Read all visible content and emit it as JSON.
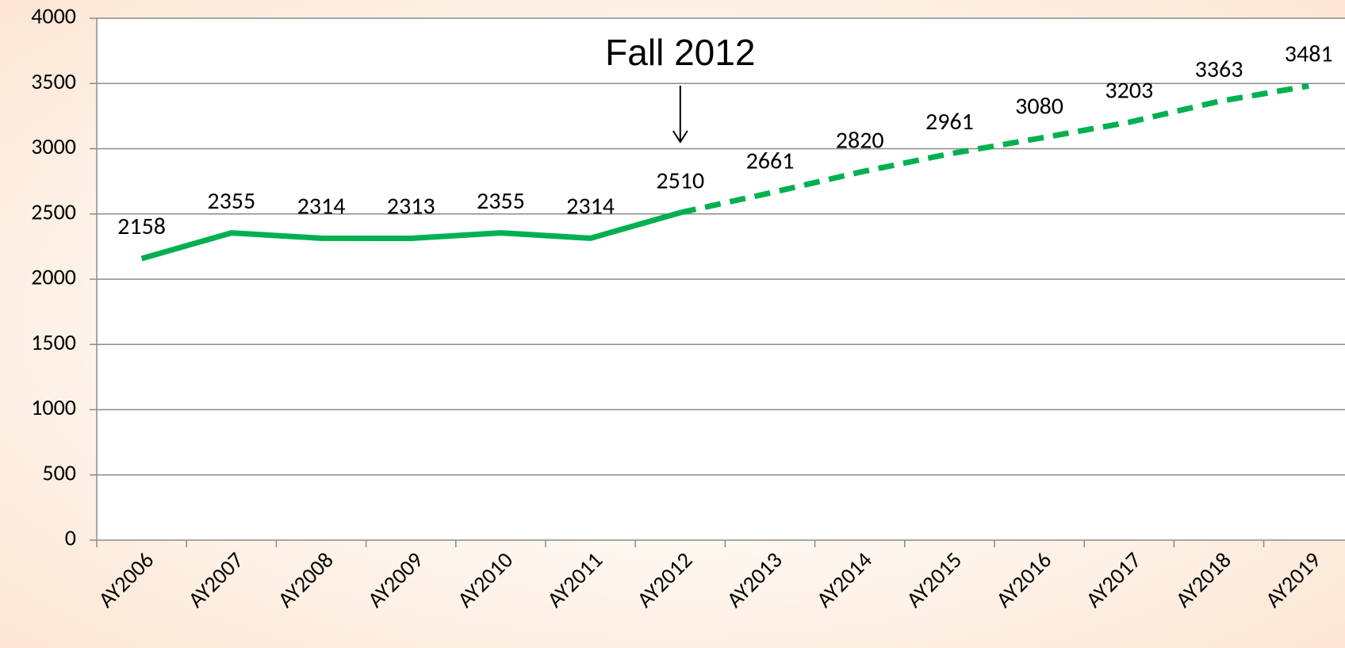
{
  "chart_data": {
    "type": "line",
    "categories": [
      "AY2006",
      "AY2007",
      "AY2008",
      "AY2009",
      "AY2010",
      "AY2011",
      "AY2012",
      "AY2013",
      "AY2014",
      "AY2015",
      "AY2016",
      "AY2017",
      "AY2018",
      "AY2019"
    ],
    "series": [
      {
        "color": "#00b050",
        "line_style": "solid",
        "values": [
          2158,
          2355,
          2314,
          2313,
          2355,
          2314,
          2510,
          null,
          null,
          null,
          null,
          null,
          null,
          null
        ]
      },
      {
        "color": "#00b050",
        "line_style": "dashed",
        "values": [
          null,
          null,
          null,
          null,
          null,
          null,
          2510,
          2661,
          2820,
          2961,
          3080,
          3203,
          3363,
          3481
        ]
      }
    ],
    "ylim": [
      0,
      4000
    ],
    "yticks": [
      0,
      500,
      1000,
      1500,
      2000,
      2500,
      3000,
      3500,
      4000
    ],
    "grid": true,
    "annotation": {
      "text": "Fall 2012",
      "category": "AY2012"
    }
  }
}
